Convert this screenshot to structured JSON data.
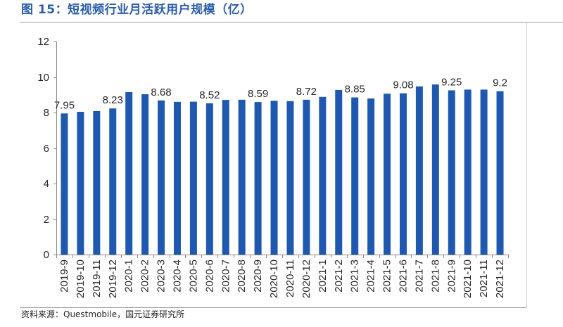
{
  "colors": {
    "title": "#2A5DA8",
    "bar": "#1F59AF",
    "axis": "#898989",
    "frame": "#9A9A9A",
    "frame_light": "#C8C8C8",
    "text": "#262626"
  },
  "footer": {
    "source": "资料来源：Questmobile，国元证券研究所"
  },
  "chart_data": {
    "type": "bar",
    "title": "图 15：短视频行业月活跃用户规模（亿）",
    "xlabel": "",
    "ylabel": "",
    "ylim": [
      0,
      12
    ],
    "yticks": [
      0,
      2,
      4,
      6,
      8,
      10,
      12
    ],
    "grid": false,
    "categories": [
      "2019-9",
      "2019-10",
      "2019-11",
      "2019-12",
      "2020-1",
      "2020-2",
      "2020-3",
      "2020-4",
      "2020-5",
      "2020-6",
      "2020-7",
      "2020-8",
      "2020-9",
      "2020-10",
      "2020-11",
      "2020-12",
      "2021-1",
      "2021-2",
      "2021-3",
      "2021-4",
      "2021-5",
      "2021-6",
      "2021-7",
      "2021-8",
      "2021-9",
      "2021-10",
      "2021-11",
      "2021-12"
    ],
    "values": [
      7.95,
      8.04,
      8.08,
      8.23,
      9.15,
      9.03,
      8.68,
      8.6,
      8.61,
      8.52,
      8.71,
      8.72,
      8.59,
      8.66,
      8.64,
      8.72,
      8.88,
      9.27,
      8.85,
      8.79,
      9.06,
      9.08,
      9.47,
      9.58,
      9.25,
      9.29,
      9.29,
      9.2
    ],
    "data_labels": [
      "7.95",
      null,
      null,
      "8.23",
      null,
      null,
      "8.68",
      null,
      null,
      "8.52",
      null,
      null,
      "8.59",
      null,
      null,
      "8.72",
      null,
      null,
      "8.85",
      null,
      null,
      "9.08",
      null,
      null,
      "9.25",
      null,
      null,
      "9.2"
    ]
  }
}
